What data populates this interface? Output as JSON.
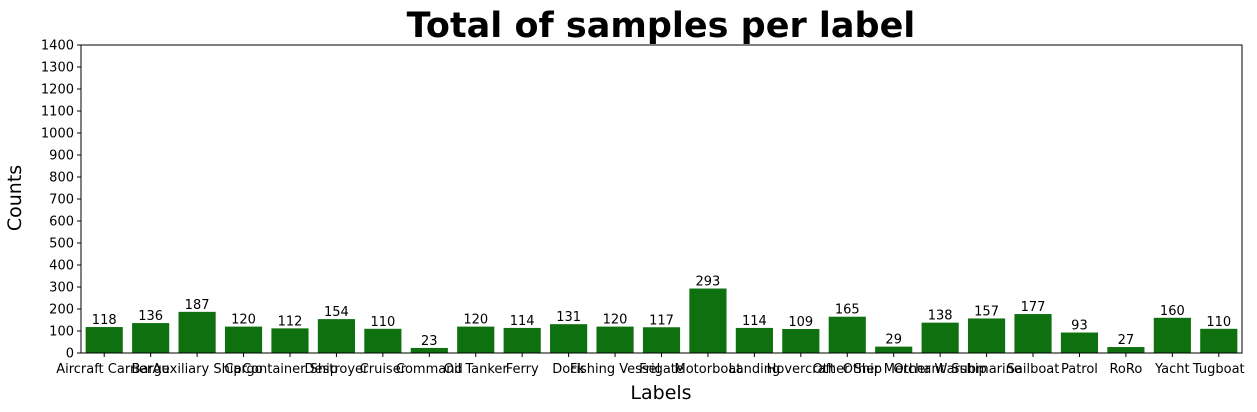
{
  "chart_data": {
    "type": "bar",
    "title": "Total of samples per label",
    "xlabel": "Labels",
    "ylabel": "Counts",
    "ylim": [
      0,
      1400
    ],
    "yticks": [
      0,
      100,
      200,
      300,
      400,
      500,
      600,
      700,
      800,
      900,
      1000,
      1100,
      1200,
      1300,
      1400
    ],
    "bar_color": "#0e700e",
    "grid": false,
    "categories": [
      "Aircraft Carrier",
      "Barge",
      "Auxiliary Ship",
      "Cargo",
      "Container Ship",
      "Destroyer",
      "Cruiser",
      "Command",
      "Oil Tanker",
      "Ferry",
      "Dock",
      "Fishing Vessel",
      "Frigate",
      "Motorboat",
      "Landing",
      "Hovercraft",
      "Other Ship",
      "Other Merchant",
      "Other Warship",
      "Submarine",
      "Sailboat",
      "Patrol",
      "RoRo",
      "Yacht",
      "Tugboat"
    ],
    "values": [
      118,
      136,
      187,
      120,
      112,
      154,
      110,
      23,
      120,
      114,
      131,
      120,
      117,
      293,
      114,
      109,
      165,
      29,
      138,
      157,
      177,
      93,
      27,
      160,
      110
    ]
  }
}
